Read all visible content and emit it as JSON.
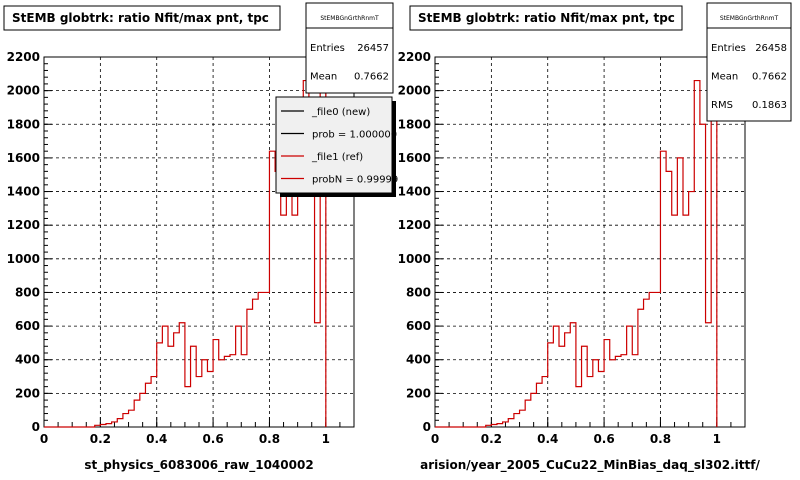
{
  "chart_data": [
    {
      "type": "line",
      "title": "StEMB globtrk: ratio Nfit/max pnt, tpc",
      "xlabel": "st_physics_6083006_raw_1040002",
      "ylabel": "",
      "xlim": [
        0,
        1.1
      ],
      "ylim": [
        0,
        2200
      ],
      "x_ticks": [
        "0",
        "0.2",
        "0.4",
        "0.6",
        "0.8",
        "1"
      ],
      "y_ticks": [
        "0",
        "200",
        "400",
        "600",
        "800",
        "1000",
        "1200",
        "1400",
        "1600",
        "1800",
        "2000",
        "2200"
      ],
      "grid": true,
      "stats": {
        "name": "StEMBGnGrthRnmT",
        "rows": [
          {
            "label": "Entries",
            "value": "26457"
          },
          {
            "label": "Mean",
            "value": "0.7662"
          }
        ]
      },
      "legend": {
        "placement": "top-right",
        "entries": [
          {
            "label": "_file0 (new)",
            "color": "#000000"
          },
          {
            "label": "prob = 1.000000",
            "color": "#000000"
          },
          {
            "label": "_file1 (ref)",
            "color": "#cc0000"
          },
          {
            "label": "probN = 0.99999",
            "color": "#cc0000"
          }
        ]
      },
      "bin_width": 0.02,
      "x": [
        0.0,
        0.02,
        0.04,
        0.06,
        0.08,
        0.1,
        0.12,
        0.14,
        0.16,
        0.18,
        0.2,
        0.22,
        0.24,
        0.26,
        0.28,
        0.3,
        0.32,
        0.34,
        0.36,
        0.38,
        0.4,
        0.42,
        0.44,
        0.46,
        0.48,
        0.5,
        0.52,
        0.54,
        0.56,
        0.58,
        0.6,
        0.62,
        0.64,
        0.66,
        0.68,
        0.7,
        0.72,
        0.74,
        0.76,
        0.78,
        0.8,
        0.82,
        0.84,
        0.86,
        0.88,
        0.9,
        0.92,
        0.94,
        0.96,
        0.98
      ],
      "series": [
        {
          "color": "#cc0000",
          "values": [
            0,
            0,
            0,
            0,
            0,
            0,
            0,
            0,
            0,
            10,
            15,
            20,
            30,
            50,
            80,
            100,
            160,
            200,
            260,
            300,
            500,
            600,
            480,
            560,
            620,
            240,
            480,
            300,
            400,
            330,
            520,
            400,
            420,
            430,
            600,
            430,
            700,
            760,
            800,
            800,
            1640,
            1520,
            1260,
            1600,
            1260,
            1400,
            2060,
            1800,
            620,
            2130
          ]
        }
      ]
    },
    {
      "type": "line",
      "title": "StEMB globtrk: ratio Nfit/max pnt, tpc",
      "xlabel": "arision/year_2005_CuCu22_MinBias_daq_sl302.ittf/",
      "ylabel": "",
      "xlim": [
        0,
        1.1
      ],
      "ylim": [
        0,
        2200
      ],
      "x_ticks": [
        "0",
        "0.2",
        "0.4",
        "0.6",
        "0.8",
        "1"
      ],
      "y_ticks": [
        "0",
        "200",
        "400",
        "600",
        "800",
        "1000",
        "1200",
        "1400",
        "1600",
        "1800",
        "2000",
        "2200"
      ],
      "grid": true,
      "stats": {
        "name": "StEMBGnGrthRnmT",
        "rows": [
          {
            "label": "Entries",
            "value": "26458"
          },
          {
            "label": "Mean",
            "value": "0.7662"
          },
          {
            "label": "RMS",
            "value": "0.1863"
          }
        ]
      },
      "bin_width": 0.02,
      "x": [
        0.0,
        0.02,
        0.04,
        0.06,
        0.08,
        0.1,
        0.12,
        0.14,
        0.16,
        0.18,
        0.2,
        0.22,
        0.24,
        0.26,
        0.28,
        0.3,
        0.32,
        0.34,
        0.36,
        0.38,
        0.4,
        0.42,
        0.44,
        0.46,
        0.48,
        0.5,
        0.52,
        0.54,
        0.56,
        0.58,
        0.6,
        0.62,
        0.64,
        0.66,
        0.68,
        0.7,
        0.72,
        0.74,
        0.76,
        0.78,
        0.8,
        0.82,
        0.84,
        0.86,
        0.88,
        0.9,
        0.92,
        0.94,
        0.96,
        0.98
      ],
      "series": [
        {
          "color": "#cc0000",
          "values": [
            0,
            0,
            0,
            0,
            0,
            0,
            0,
            0,
            0,
            10,
            15,
            20,
            30,
            50,
            80,
            100,
            160,
            200,
            260,
            300,
            500,
            600,
            480,
            560,
            620,
            240,
            480,
            300,
            400,
            330,
            520,
            400,
            420,
            430,
            600,
            430,
            700,
            760,
            800,
            800,
            1640,
            1520,
            1260,
            1600,
            1260,
            1400,
            2060,
            1800,
            620,
            2130
          ]
        }
      ]
    }
  ]
}
